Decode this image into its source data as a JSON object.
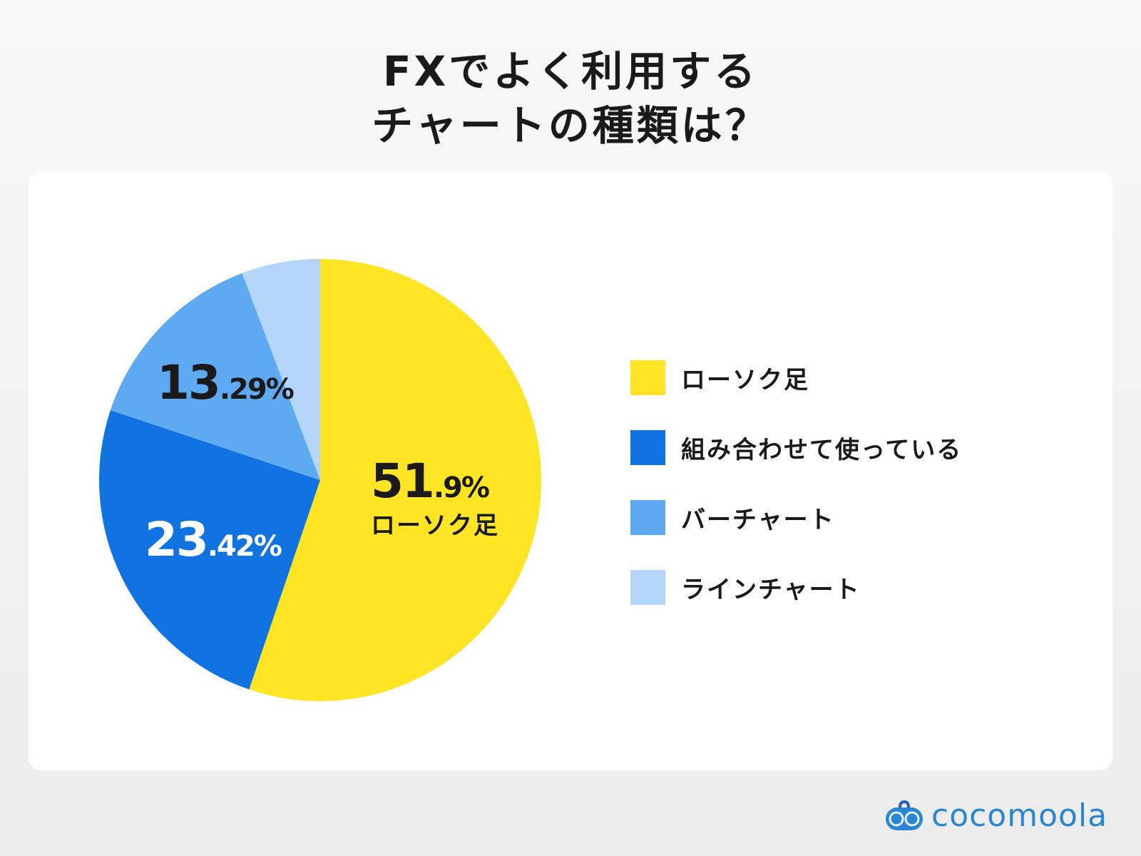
{
  "title": {
    "line1": "FXでよく利用する",
    "line2": "チャートの種類は？"
  },
  "chart_data": {
    "type": "pie",
    "title": "FXでよく利用するチャートの種類は？",
    "categories": [
      "ローソク足",
      "組み合わせて使っている",
      "バーチャート",
      "ラインチャート"
    ],
    "values": [
      51.9,
      23.42,
      13.29,
      5.4
    ],
    "colors": [
      "#ffe523",
      "#1173e2",
      "#5eaaf2",
      "#b3d5fa"
    ],
    "start": "top, clockwise",
    "legend": "right",
    "data_labels": [
      {
        "big": "51",
        "small": ".9%",
        "sub": "ローソク足"
      },
      {
        "big": "23",
        "small": ".42%"
      },
      {
        "big": "13",
        "small": ".29%"
      }
    ]
  },
  "logo": {
    "text": "cocomoola",
    "color": "#2a86d3"
  }
}
